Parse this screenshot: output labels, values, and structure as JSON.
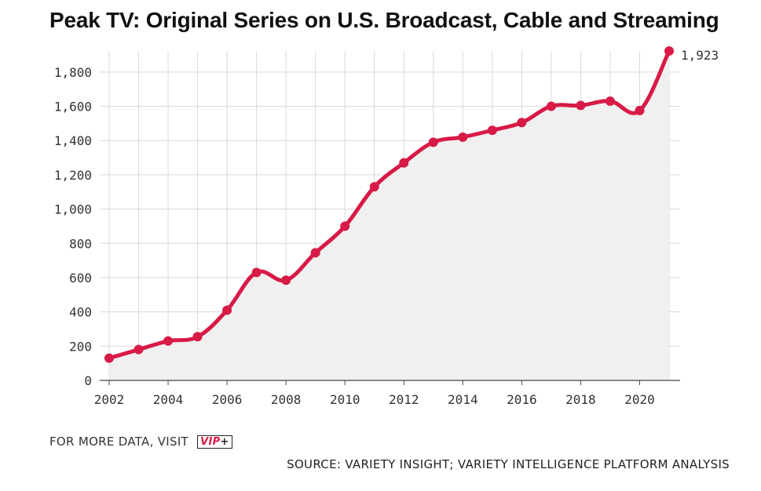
{
  "title": "Peak TV: Original Series on U.S. Broadcast, Cable and Streaming",
  "footer": {
    "more_data": "FOR MORE DATA, VISIT",
    "vip_label": "VIP",
    "vip_plus": "+",
    "source": "SOURCE: VARIETY INSIGHT; VARIETY INTELLIGENCE PLATFORM ANALYSIS"
  },
  "colors": {
    "line": "#d81a46",
    "area": "#f0f0f0",
    "grid": "#d9d9d9",
    "axis": "#444444",
    "text": "#333333"
  },
  "chart_data": {
    "type": "area",
    "title": "Peak TV: Original Series on U.S. Broadcast, Cable and Streaming",
    "xlabel": "",
    "ylabel": "",
    "x": [
      2002,
      2003,
      2004,
      2005,
      2006,
      2007,
      2008,
      2009,
      2010,
      2011,
      2012,
      2013,
      2014,
      2015,
      2016,
      2017,
      2018,
      2019,
      2020,
      2021
    ],
    "series": [
      {
        "values": [
          130,
          180,
          230,
          255,
          410,
          630,
          585,
          745,
          900,
          1130,
          1270,
          1390,
          1420,
          1460,
          1505,
          1600,
          1605,
          1630,
          1575,
          1923
        ]
      }
    ],
    "xlim": [
      2002,
      2021
    ],
    "ylim": [
      0,
      1900
    ],
    "xticks": [
      "2002",
      "2004",
      "2006",
      "2008",
      "2010",
      "2012",
      "2014",
      "2016",
      "2018",
      "2020"
    ],
    "yticks": [
      "0",
      "200",
      "400",
      "600",
      "800",
      "1,000",
      "1,200",
      "1,400",
      "1,600",
      "1,800"
    ],
    "annotations": [
      {
        "x": 2021,
        "y": 1923,
        "text": "1,923"
      }
    ],
    "grid": true,
    "smooth": true
  }
}
